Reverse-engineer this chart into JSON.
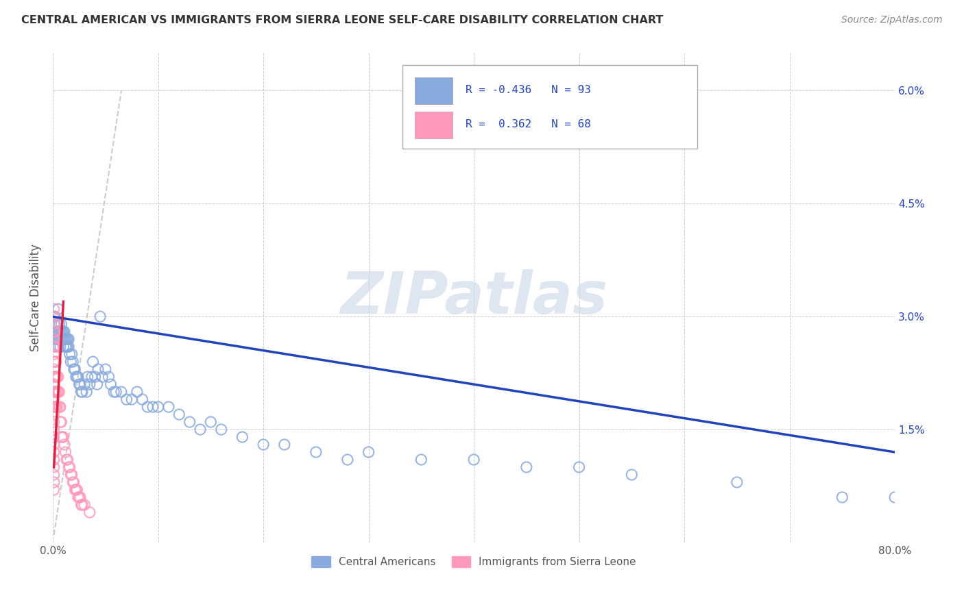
{
  "title": "CENTRAL AMERICAN VS IMMIGRANTS FROM SIERRA LEONE SELF-CARE DISABILITY CORRELATION CHART",
  "source": "Source: ZipAtlas.com",
  "ylabel": "Self-Care Disability",
  "yticks": [
    "1.5%",
    "3.0%",
    "4.5%",
    "6.0%"
  ],
  "ytick_vals": [
    0.015,
    0.03,
    0.045,
    0.06
  ],
  "xlim": [
    0.0,
    0.8
  ],
  "ylim": [
    0.0,
    0.065
  ],
  "blue_color": "#88AADD",
  "pink_color": "#FF99BB",
  "trend_blue_color": "#2244BB",
  "trend_pink_color": "#DD2244",
  "trend_gray_color": "#CCCCCC",
  "watermark": "ZIPatlas",
  "blue_scatter_x": [
    0.001,
    0.002,
    0.002,
    0.003,
    0.003,
    0.004,
    0.004,
    0.004,
    0.005,
    0.005,
    0.005,
    0.005,
    0.006,
    0.006,
    0.006,
    0.007,
    0.007,
    0.007,
    0.008,
    0.008,
    0.008,
    0.009,
    0.009,
    0.01,
    0.01,
    0.01,
    0.011,
    0.011,
    0.012,
    0.012,
    0.013,
    0.013,
    0.014,
    0.014,
    0.015,
    0.015,
    0.016,
    0.017,
    0.018,
    0.019,
    0.02,
    0.021,
    0.022,
    0.023,
    0.024,
    0.025,
    0.026,
    0.027,
    0.028,
    0.03,
    0.032,
    0.033,
    0.035,
    0.037,
    0.038,
    0.04,
    0.042,
    0.043,
    0.045,
    0.047,
    0.05,
    0.053,
    0.055,
    0.058,
    0.06,
    0.065,
    0.07,
    0.075,
    0.08,
    0.085,
    0.09,
    0.095,
    0.1,
    0.11,
    0.12,
    0.13,
    0.14,
    0.15,
    0.16,
    0.18,
    0.2,
    0.22,
    0.25,
    0.28,
    0.3,
    0.35,
    0.4,
    0.45,
    0.5,
    0.55,
    0.65,
    0.75,
    0.8
  ],
  "blue_scatter_y": [
    0.03,
    0.03,
    0.029,
    0.028,
    0.027,
    0.028,
    0.027,
    0.029,
    0.028,
    0.027,
    0.026,
    0.031,
    0.029,
    0.028,
    0.027,
    0.028,
    0.027,
    0.026,
    0.029,
    0.028,
    0.027,
    0.028,
    0.027,
    0.028,
    0.027,
    0.026,
    0.028,
    0.027,
    0.027,
    0.026,
    0.027,
    0.026,
    0.027,
    0.026,
    0.027,
    0.026,
    0.025,
    0.024,
    0.025,
    0.024,
    0.023,
    0.023,
    0.022,
    0.022,
    0.022,
    0.021,
    0.021,
    0.02,
    0.02,
    0.021,
    0.02,
    0.022,
    0.021,
    0.022,
    0.024,
    0.022,
    0.021,
    0.023,
    0.03,
    0.022,
    0.023,
    0.022,
    0.021,
    0.02,
    0.02,
    0.02,
    0.019,
    0.019,
    0.02,
    0.019,
    0.018,
    0.018,
    0.018,
    0.018,
    0.017,
    0.016,
    0.015,
    0.016,
    0.015,
    0.014,
    0.013,
    0.013,
    0.012,
    0.011,
    0.012,
    0.011,
    0.011,
    0.01,
    0.01,
    0.009,
    0.008,
    0.006,
    0.006
  ],
  "pink_scatter_x": [
    0.001,
    0.001,
    0.001,
    0.001,
    0.001,
    0.001,
    0.001,
    0.001,
    0.001,
    0.001,
    0.001,
    0.001,
    0.001,
    0.001,
    0.001,
    0.001,
    0.001,
    0.001,
    0.001,
    0.001,
    0.001,
    0.001,
    0.001,
    0.001,
    0.001,
    0.002,
    0.002,
    0.002,
    0.002,
    0.002,
    0.002,
    0.003,
    0.003,
    0.003,
    0.003,
    0.004,
    0.004,
    0.004,
    0.005,
    0.005,
    0.006,
    0.006,
    0.007,
    0.007,
    0.008,
    0.008,
    0.009,
    0.01,
    0.011,
    0.012,
    0.013,
    0.014,
    0.015,
    0.016,
    0.017,
    0.018,
    0.019,
    0.02,
    0.021,
    0.022,
    0.023,
    0.024,
    0.025,
    0.026,
    0.027,
    0.028,
    0.03,
    0.035
  ],
  "pink_scatter_y": [
    0.028,
    0.029,
    0.03,
    0.031,
    0.025,
    0.026,
    0.027,
    0.022,
    0.023,
    0.024,
    0.02,
    0.021,
    0.019,
    0.018,
    0.017,
    0.016,
    0.015,
    0.014,
    0.013,
    0.012,
    0.011,
    0.01,
    0.009,
    0.008,
    0.007,
    0.028,
    0.026,
    0.024,
    0.022,
    0.02,
    0.018,
    0.024,
    0.022,
    0.02,
    0.018,
    0.022,
    0.02,
    0.018,
    0.022,
    0.02,
    0.02,
    0.018,
    0.018,
    0.016,
    0.016,
    0.014,
    0.014,
    0.014,
    0.013,
    0.012,
    0.011,
    0.011,
    0.01,
    0.01,
    0.009,
    0.009,
    0.008,
    0.008,
    0.007,
    0.007,
    0.007,
    0.006,
    0.006,
    0.006,
    0.005,
    0.005,
    0.005,
    0.004
  ],
  "blue_trend_x0": 0.0,
  "blue_trend_x1": 0.8,
  "blue_trend_y0": 0.03,
  "blue_trend_y1": 0.012,
  "pink_trend_x0": 0.001,
  "pink_trend_x1": 0.01,
  "pink_trend_y0": 0.01,
  "pink_trend_y1": 0.032,
  "gray_line_x0": 0.001,
  "gray_line_x1": 0.065,
  "gray_line_y0": 0.001,
  "gray_line_y1": 0.06
}
